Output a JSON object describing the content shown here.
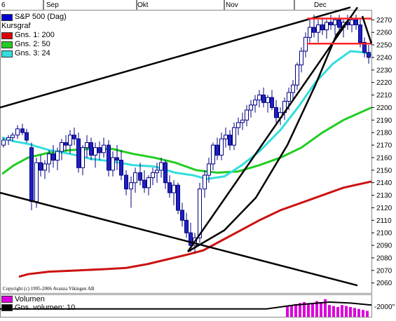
{
  "chart_data": {
    "type": "candlestick",
    "title": "S&P 500 (Dag)",
    "x_tick_labels": [
      "6",
      "Sep",
      "Okt",
      "Nov",
      "Dec"
    ],
    "y_ticks": [
      2060,
      2070,
      2080,
      2090,
      2100,
      2110,
      2120,
      2130,
      2140,
      2150,
      2160,
      2170,
      2180,
      2190,
      2200,
      2210,
      2220,
      2230,
      2240,
      2250,
      2260,
      2270
    ],
    "ylim": [
      2052,
      2278
    ],
    "legend": [
      {
        "label": "Kursgraf",
        "color": "#0000cc"
      },
      {
        "label": "Gns. 1: 200",
        "color": "#dd0000"
      },
      {
        "label": "Gns. 2: 50",
        "color": "#22cc22"
      },
      {
        "label": "Gns. 3: 24",
        "color": "#33dddd"
      }
    ],
    "series": [
      {
        "name": "Gns. 1: 200",
        "color": "#cc1111",
        "values": [
          [
            27,
            2065
          ],
          [
            40,
            2067
          ],
          [
            70,
            2069
          ],
          [
            110,
            2070
          ],
          [
            150,
            2071
          ],
          [
            180,
            2072
          ],
          [
            210,
            2075
          ],
          [
            240,
            2079
          ],
          [
            270,
            2083
          ],
          [
            290,
            2086
          ],
          [
            310,
            2092
          ],
          [
            330,
            2098
          ],
          [
            350,
            2104
          ],
          [
            370,
            2110
          ],
          [
            400,
            2118
          ],
          [
            430,
            2124
          ],
          [
            460,
            2130
          ],
          [
            490,
            2136
          ],
          [
            530,
            2141
          ]
        ]
      },
      {
        "name": "Gns. 2: 50",
        "color": "#22cc22",
        "values": [
          [
            3,
            2147
          ],
          [
            20,
            2154
          ],
          [
            40,
            2160
          ],
          [
            70,
            2164
          ],
          [
            100,
            2166
          ],
          [
            130,
            2167
          ],
          [
            160,
            2167
          ],
          [
            190,
            2163
          ],
          [
            220,
            2160
          ],
          [
            250,
            2156
          ],
          [
            280,
            2150
          ],
          [
            310,
            2148
          ],
          [
            340,
            2149
          ],
          [
            370,
            2154
          ],
          [
            400,
            2160
          ],
          [
            430,
            2168
          ],
          [
            460,
            2180
          ],
          [
            490,
            2190
          ],
          [
            530,
            2200
          ]
        ]
      },
      {
        "name": "Gns. 3: 24",
        "color": "#33dddd",
        "values": [
          [
            3,
            2176
          ],
          [
            20,
            2173
          ],
          [
            40,
            2171
          ],
          [
            70,
            2166
          ],
          [
            100,
            2163
          ],
          [
            130,
            2159
          ],
          [
            160,
            2157
          ],
          [
            190,
            2154
          ],
          [
            220,
            2153
          ],
          [
            250,
            2148
          ],
          [
            275,
            2146
          ],
          [
            295,
            2143
          ],
          [
            320,
            2145
          ],
          [
            345,
            2154
          ],
          [
            370,
            2165
          ],
          [
            400,
            2182
          ],
          [
            425,
            2200
          ],
          [
            450,
            2220
          ],
          [
            475,
            2235
          ],
          [
            500,
            2245
          ],
          [
            520,
            2244
          ],
          [
            530,
            2242
          ]
        ]
      }
    ],
    "trendlines": [
      {
        "points": [
          [
            0,
            2200
          ],
          [
            500,
            2280
          ]
        ],
        "color": "#000000"
      },
      {
        "points": [
          [
            0,
            2132
          ],
          [
            510,
            2058
          ]
        ],
        "color": "#000000"
      },
      {
        "points": [
          [
            268,
            2085
          ],
          [
            510,
            2280
          ]
        ],
        "color": "#000000"
      },
      {
        "points": [
          [
            268,
            2085
          ],
          [
            320,
            2102
          ],
          [
            365,
            2128
          ],
          [
            410,
            2170
          ],
          [
            450,
            2218
          ],
          [
            480,
            2258
          ],
          [
            500,
            2272
          ]
        ],
        "color": "#000000"
      },
      {
        "points": [
          [
            438,
            2271
          ],
          [
            530,
            2271
          ]
        ],
        "color": "#ff2222"
      },
      {
        "points": [
          [
            438,
            2251
          ],
          [
            530,
            2251
          ]
        ],
        "color": "#ff2222"
      },
      {
        "points": [
          [
            517,
            2273
          ],
          [
            530,
            2251
          ]
        ],
        "color": "#000000"
      }
    ],
    "candles": [
      [
        5,
        2170,
        2176,
        2168,
        2174
      ],
      [
        12,
        2174,
        2178,
        2170,
        2176
      ],
      [
        18,
        2176,
        2180,
        2173,
        2178
      ],
      [
        25,
        2178,
        2186,
        2175,
        2183
      ],
      [
        32,
        2183,
        2187,
        2178,
        2180
      ],
      [
        38,
        2180,
        2183,
        2172,
        2174
      ],
      [
        45,
        2168,
        2172,
        2118,
        2125
      ],
      [
        52,
        2125,
        2160,
        2120,
        2156
      ],
      [
        58,
        2156,
        2162,
        2145,
        2150
      ],
      [
        64,
        2150,
        2158,
        2143,
        2155
      ],
      [
        70,
        2155,
        2166,
        2148,
        2163
      ],
      [
        76,
        2163,
        2170,
        2152,
        2158
      ],
      [
        82,
        2158,
        2168,
        2150,
        2165
      ],
      [
        88,
        2165,
        2175,
        2158,
        2172
      ],
      [
        94,
        2172,
        2178,
        2165,
        2170
      ],
      [
        100,
        2170,
        2182,
        2163,
        2178
      ],
      [
        106,
        2178,
        2184,
        2170,
        2175
      ],
      [
        112,
        2175,
        2180,
        2148,
        2152
      ],
      [
        118,
        2152,
        2170,
        2146,
        2168
      ],
      [
        124,
        2168,
        2178,
        2160,
        2172
      ],
      [
        130,
        2172,
        2176,
        2158,
        2162
      ],
      [
        136,
        2162,
        2172,
        2152,
        2168
      ],
      [
        142,
        2168,
        2173,
        2158,
        2164
      ],
      [
        148,
        2164,
        2176,
        2160,
        2170
      ],
      [
        155,
        2170,
        2174,
        2145,
        2150
      ],
      [
        161,
        2150,
        2165,
        2145,
        2160
      ],
      [
        167,
        2160,
        2170,
        2150,
        2158
      ],
      [
        173,
        2158,
        2166,
        2142,
        2146
      ],
      [
        180,
        2146,
        2150,
        2130,
        2135
      ],
      [
        187,
        2135,
        2145,
        2120,
        2140
      ],
      [
        193,
        2140,
        2152,
        2132,
        2148
      ],
      [
        200,
        2148,
        2156,
        2138,
        2142
      ],
      [
        206,
        2142,
        2150,
        2132,
        2136
      ],
      [
        212,
        2136,
        2146,
        2130,
        2144
      ],
      [
        218,
        2144,
        2152,
        2138,
        2148
      ],
      [
        224,
        2148,
        2156,
        2140,
        2150
      ],
      [
        230,
        2150,
        2160,
        2144,
        2156
      ],
      [
        236,
        2156,
        2158,
        2135,
        2140
      ],
      [
        242,
        2140,
        2146,
        2128,
        2132
      ],
      [
        248,
        2132,
        2142,
        2122,
        2138
      ],
      [
        254,
        2138,
        2140,
        2115,
        2118
      ],
      [
        260,
        2118,
        2124,
        2105,
        2110
      ],
      [
        266,
        2110,
        2116,
        2096,
        2100
      ],
      [
        272,
        2100,
        2108,
        2085,
        2090
      ],
      [
        278,
        2090,
        2100,
        2084,
        2096
      ],
      [
        285,
        2096,
        2140,
        2092,
        2135
      ],
      [
        292,
        2135,
        2150,
        2128,
        2146
      ],
      [
        298,
        2146,
        2160,
        2140,
        2155
      ],
      [
        304,
        2155,
        2172,
        2150,
        2170
      ],
      [
        310,
        2170,
        2176,
        2158,
        2162
      ],
      [
        316,
        2162,
        2180,
        2158,
        2175
      ],
      [
        322,
        2175,
        2184,
        2168,
        2178
      ],
      [
        328,
        2178,
        2182,
        2166,
        2170
      ],
      [
        334,
        2170,
        2188,
        2166,
        2184
      ],
      [
        340,
        2184,
        2192,
        2178,
        2188
      ],
      [
        346,
        2188,
        2196,
        2182,
        2190
      ],
      [
        352,
        2190,
        2202,
        2185,
        2198
      ],
      [
        358,
        2198,
        2206,
        2192,
        2202
      ],
      [
        364,
        2202,
        2210,
        2196,
        2206
      ],
      [
        370,
        2206,
        2214,
        2200,
        2210
      ],
      [
        376,
        2210,
        2216,
        2200,
        2204
      ],
      [
        382,
        2204,
        2210,
        2196,
        2208
      ],
      [
        388,
        2208,
        2214,
        2198,
        2200
      ],
      [
        394,
        2200,
        2206,
        2188,
        2192
      ],
      [
        400,
        2192,
        2200,
        2186,
        2196
      ],
      [
        406,
        2196,
        2208,
        2190,
        2205
      ],
      [
        412,
        2205,
        2216,
        2198,
        2212
      ],
      [
        418,
        2212,
        2222,
        2205,
        2218
      ],
      [
        424,
        2218,
        2236,
        2214,
        2234
      ],
      [
        430,
        2234,
        2248,
        2228,
        2245
      ],
      [
        436,
        2245,
        2260,
        2240,
        2256
      ],
      [
        442,
        2256,
        2270,
        2252,
        2264
      ],
      [
        448,
        2264,
        2274,
        2256,
        2260
      ],
      [
        454,
        2260,
        2270,
        2252,
        2266
      ],
      [
        460,
        2266,
        2272,
        2258,
        2262
      ],
      [
        466,
        2262,
        2270,
        2255,
        2268
      ],
      [
        472,
        2268,
        2274,
        2262,
        2266
      ],
      [
        478,
        2266,
        2272,
        2258,
        2270
      ],
      [
        484,
        2270,
        2274,
        2262,
        2264
      ],
      [
        490,
        2264,
        2270,
        2256,
        2268
      ],
      [
        496,
        2268,
        2274,
        2262,
        2266
      ],
      [
        502,
        2266,
        2272,
        2260,
        2270
      ],
      [
        508,
        2270,
        2274,
        2262,
        2266
      ],
      [
        514,
        2266,
        2270,
        2248,
        2252
      ],
      [
        520,
        2252,
        2256,
        2240,
        2244
      ],
      [
        526,
        2244,
        2250,
        2235,
        2240
      ]
    ],
    "volume": {
      "legend": [
        {
          "label": "Volumen",
          "color": "#dd00dd"
        },
        {
          "label": "Gns. volumen: 10",
          "color": "#000000"
        }
      ],
      "axis_label": "2000",
      "bars_x": [
        410,
        416,
        422,
        428,
        434,
        440,
        446,
        452,
        458,
        464,
        470,
        476,
        482,
        488,
        494,
        500,
        506,
        512,
        518,
        524
      ],
      "bars_rel": [
        0.55,
        0.6,
        0.65,
        0.7,
        0.75,
        0.7,
        0.65,
        0.8,
        0.75,
        0.9,
        0.6,
        0.55,
        0.5,
        0.6,
        0.55,
        0.5,
        0.45,
        0.4,
        0.35,
        0.3
      ],
      "avg_line": [
        [
          0,
          0.4
        ],
        [
          380,
          0.4
        ],
        [
          420,
          0.6
        ],
        [
          470,
          0.75
        ],
        [
          500,
          0.7
        ],
        [
          530,
          0.6
        ]
      ]
    },
    "copyright": "Copyright (c) 1995-2006 Avanza Vikingen AB"
  }
}
